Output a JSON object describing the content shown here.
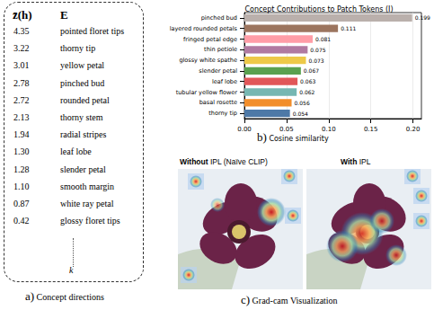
{
  "panel_a": {
    "header": {
      "score": "z̄(h)",
      "concepts": "E"
    },
    "rows": [
      [
        "4.35",
        "pointed floret tips"
      ],
      [
        "3.22",
        "thorny tip"
      ],
      [
        "3.01",
        "yellow petal"
      ],
      [
        "2.78",
        "pinched bud"
      ],
      [
        "2.72",
        "rounded petal"
      ],
      [
        "2.13",
        "thorny stem"
      ],
      [
        "1.94",
        "radial stripes"
      ],
      [
        "1.30",
        "leaf lobe"
      ],
      [
        "1.28",
        "slender petal"
      ],
      [
        "1.10",
        "smooth margin"
      ],
      [
        "0.87",
        "white ray petal"
      ],
      [
        "0.42",
        "glossy floret tips"
      ]
    ],
    "ellipsis_label": "k",
    "caption": {
      "tag": "a)",
      "text": "Concept directions"
    }
  },
  "chart_data": {
    "type": "bar",
    "title": "Concept Contributions to Patch Tokens (I)",
    "categories": [
      "pinched bud",
      "layered rounded petals",
      "fringed petal edge",
      "thin petiole",
      "glossy white spathe",
      "slender petal",
      "leaf lobe",
      "tubular yellow flower",
      "basal rosette",
      "thorny tip"
    ],
    "values": [
      0.199,
      0.111,
      0.081,
      0.075,
      0.073,
      0.067,
      0.063,
      0.062,
      0.056,
      0.054
    ],
    "colors": [
      "#bab0ac",
      "#9c755f",
      "#ff9da7",
      "#b07aa1",
      "#edc948",
      "#59a14f",
      "#e15759",
      "#76b7b2",
      "#f28e2b",
      "#4e79a7"
    ],
    "orientation": "horizontal",
    "data_labels": true,
    "grid": true,
    "panel_label": "b)",
    "xlabel": "Cosine similarity",
    "xlim": [
      0,
      0.21
    ],
    "xticks": [
      {
        "value": 0,
        "label": "0.00"
      },
      {
        "value": 0.05,
        "label": "0.05"
      },
      {
        "value": 0.1,
        "label": "0.10"
      },
      {
        "value": 0.15,
        "label": "0.15"
      },
      {
        "value": 0.2,
        "label": "0.20"
      }
    ]
  },
  "panel_c": {
    "images": [
      {
        "bold": "Without",
        "label": " IPL (Naïve CLIP)"
      },
      {
        "bold": "With",
        "label": " IPL"
      }
    ],
    "caption": {
      "tag": "c)",
      "text": "Grad-cam Visualization"
    }
  }
}
